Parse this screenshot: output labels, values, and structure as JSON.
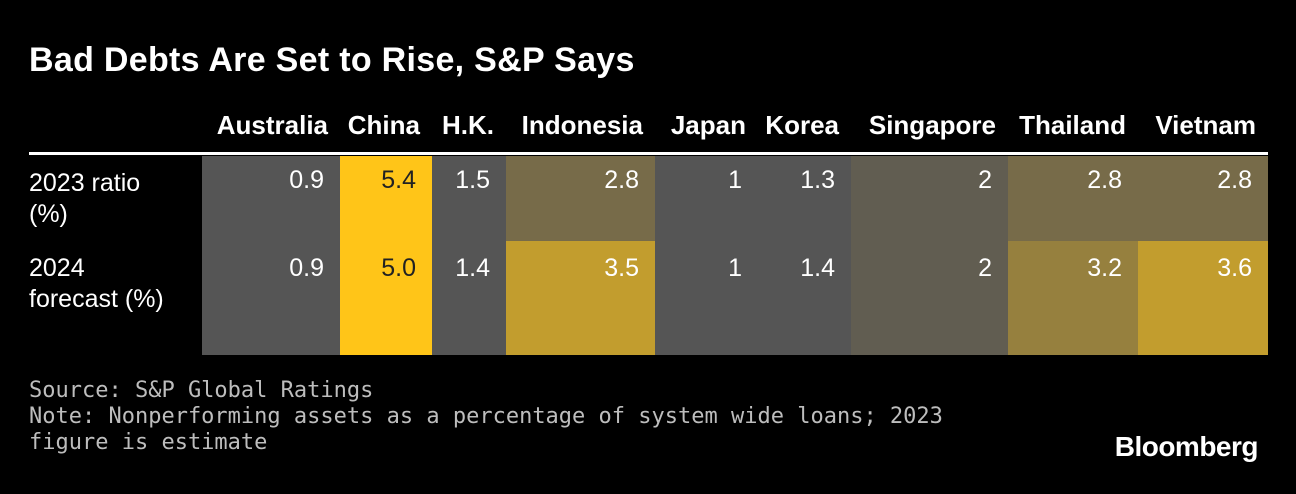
{
  "title": "Bad Debts Are Set to Rise, S&P Says",
  "chart_data": {
    "type": "table",
    "columns": [
      "Australia",
      "China",
      "H.K.",
      "Indonesia",
      "Japan",
      "Korea",
      "Singapore",
      "Thailand",
      "Vietnam"
    ],
    "rows": [
      {
        "label": "2023 ratio (%)",
        "values": [
          "0.9",
          "5.4",
          "1.5",
          "2.8",
          "1",
          "1.3",
          "2",
          "2.8",
          "2.8"
        ]
      },
      {
        "label": "2024 forecast (%)",
        "values": [
          "0.9",
          "5.0",
          "1.4",
          "3.5",
          "1",
          "1.4",
          "2",
          "3.2",
          "3.6"
        ]
      }
    ],
    "colors": {
      "heat_low": "#555555",
      "heat_high": "#ffc518",
      "rule": "#ffffff"
    }
  },
  "footer": {
    "source": "Source: S&P Global Ratings",
    "note": "Note: Nonperforming assets as a percentage of system wide loans; 2023 figure is estimate"
  },
  "brand": "Bloomberg"
}
